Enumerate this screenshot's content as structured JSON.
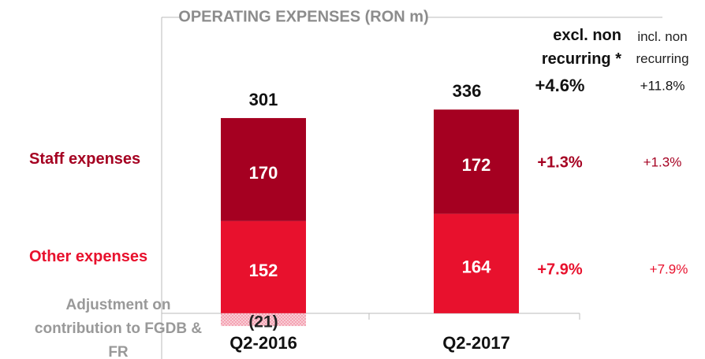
{
  "chart_data": {
    "type": "stacked_bar",
    "title": "OPERATING EXPENSES (RON m)",
    "categories": [
      "Q2-2016",
      "Q2-2017"
    ],
    "series": [
      {
        "name": "Other expenses",
        "color": "#e8112d",
        "values": [
          152,
          164
        ]
      },
      {
        "name": "Staff expenses",
        "color": "#a50021",
        "values": [
          170,
          172
        ]
      },
      {
        "name": "Adjustment on contribution to FGDB & FR",
        "color": "#f4a3b3",
        "hatch": true,
        "values": [
          -21,
          null
        ],
        "value_labels": [
          "(21)",
          null
        ]
      }
    ],
    "totals": [
      301,
      336
    ],
    "ylim": [
      -30,
      370
    ],
    "growth_columns": [
      {
        "header": "excl. non recurring *",
        "values": [
          4.6,
          1.3,
          7.9
        ],
        "value_labels": [
          "+4.6%",
          "+1.3%",
          "+7.9%"
        ]
      },
      {
        "header": "incl. non recurring",
        "values": [
          11.8,
          1.3,
          7.9
        ],
        "value_labels": [
          "+11.8%",
          "+1.3%",
          "+7.9%"
        ]
      }
    ]
  }
}
